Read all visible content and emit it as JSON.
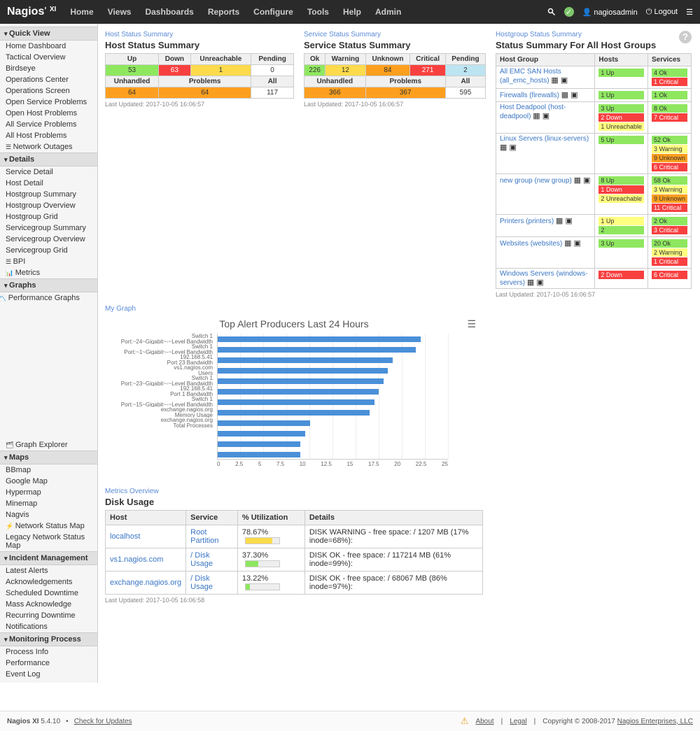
{
  "brand": "Nagios",
  "brand_suffix": "XI",
  "nav": [
    "Home",
    "Views",
    "Dashboards",
    "Reports",
    "Configure",
    "Tools",
    "Help",
    "Admin"
  ],
  "user": "nagiosadmin",
  "logout": "Logout",
  "sidebar": {
    "quickview": {
      "head": "Quick View",
      "items": [
        "Home Dashboard",
        "Tactical Overview",
        "Birdseye",
        "Operations Center",
        "Operations Screen",
        "Open Service Problems",
        "Open Host Problems",
        "All Service Problems",
        "All Host Problems"
      ],
      "extra": "Network Outages"
    },
    "details": {
      "head": "Details",
      "items": [
        "Service Detail",
        "Host Detail",
        "Hostgroup Summary",
        "Hostgroup Overview",
        "Hostgroup Grid",
        "Servicegroup Summary",
        "Servicegroup Overview",
        "Servicegroup Grid"
      ],
      "bpi": "BPI",
      "metrics": "Metrics"
    },
    "graphs": {
      "head": "Graphs",
      "perf": "Performance Graphs",
      "exp": "Graph Explorer"
    },
    "maps": {
      "head": "Maps",
      "items": [
        "BBmap",
        "Google Map",
        "Hypermap",
        "Minemap",
        "Nagvis"
      ],
      "netmap": "Network Status Map",
      "legacy": "Legacy Network Status Map"
    },
    "incident": {
      "head": "Incident Management",
      "items": [
        "Latest Alerts",
        "Acknowledgements",
        "Scheduled Downtime",
        "Mass Acknowledge",
        "Recurring Downtime",
        "Notifications"
      ]
    },
    "monitor": {
      "head": "Monitoring Process",
      "items": [
        "Process Info",
        "Performance",
        "Event Log"
      ]
    }
  },
  "host_summary": {
    "bc": "Host Status Summary",
    "title": "Host Status Summary",
    "h1": [
      "Up",
      "Down",
      "Unreachable",
      "Pending"
    ],
    "r1": {
      "up": "53",
      "down": "63",
      "unreach": "1",
      "pending": "0"
    },
    "h2": [
      "Unhandled",
      "Problems",
      "All"
    ],
    "r2": {
      "unh": "64",
      "prob": "64",
      "all": "117"
    },
    "ts": "Last Updated: 2017-10-05 16:06:57"
  },
  "svc_summary": {
    "bc": "Service Status Summary",
    "title": "Service Status Summary",
    "h1": [
      "Ok",
      "Warning",
      "Unknown",
      "Critical",
      "Pending"
    ],
    "r1": {
      "ok": "226",
      "warn": "12",
      "unk": "84",
      "crit": "271",
      "pending": "2"
    },
    "h2": [
      "Unhandled",
      "Problems",
      "All"
    ],
    "r2": {
      "unh": "366",
      "prob": "367",
      "all": "595"
    },
    "ts": "Last Updated: 2017-10-05 16:06:57"
  },
  "hostgroups": {
    "bc": "Hostgroup Status Summary",
    "title": "Status Summary For All Host Groups",
    "cols": [
      "Host Group",
      "Hosts",
      "Services"
    ],
    "rows": [
      {
        "name": "All EMC SAN Hosts (all_emc_hosts)",
        "hosts": [
          {
            "t": "1 Up",
            "c": "c-ok"
          }
        ],
        "svcs": [
          {
            "t": "4 Ok",
            "c": "c-ok"
          },
          {
            "t": "1 Critical",
            "c": "c-red"
          }
        ]
      },
      {
        "name": "Firewalls (firewalls)",
        "hosts": [
          {
            "t": "1 Up",
            "c": "c-ok"
          }
        ],
        "svcs": [
          {
            "t": "1 Ok",
            "c": "c-ok"
          }
        ]
      },
      {
        "name": "Host Deadpool (host-deadpool)",
        "hosts": [
          {
            "t": "3 Up",
            "c": "c-ok"
          },
          {
            "t": "2 Down",
            "c": "c-red"
          },
          {
            "t": "1 Unreachable",
            "c": "c-yellow"
          }
        ],
        "svcs": [
          {
            "t": "8 Ok",
            "c": "c-ok"
          },
          {
            "t": "7 Critical",
            "c": "c-red"
          }
        ]
      },
      {
        "name": "Linux Servers (linux-servers)",
        "hosts": [
          {
            "t": "5 Up",
            "c": "c-ok"
          }
        ],
        "svcs": [
          {
            "t": "52 Ok",
            "c": "c-ok"
          },
          {
            "t": "3 Warning",
            "c": "c-yellow"
          },
          {
            "t": "9 Unknown",
            "c": "c-orange"
          },
          {
            "t": "6 Critical",
            "c": "c-red"
          }
        ]
      },
      {
        "name": "new group (new group)",
        "hosts": [
          {
            "t": "8 Up",
            "c": "c-ok"
          },
          {
            "t": "1 Down",
            "c": "c-red"
          },
          {
            "t": "2 Unreachable",
            "c": "c-yellow"
          }
        ],
        "svcs": [
          {
            "t": "58 Ok",
            "c": "c-ok"
          },
          {
            "t": "3 Warning",
            "c": "c-yellow"
          },
          {
            "t": "9 Unknown",
            "c": "c-orange"
          },
          {
            "t": "11 Critical",
            "c": "c-red"
          }
        ]
      },
      {
        "name": "Printers (printers)",
        "hosts": [
          {
            "t": "1 Up",
            "c": "c-yellow"
          },
          {
            "t": "2",
            "c": "c-ok"
          }
        ],
        "svcs": [
          {
            "t": "2 Ok",
            "c": "c-ok"
          },
          {
            "t": "3 Critical",
            "c": "c-red"
          }
        ]
      },
      {
        "name": "Websites (websites)",
        "hosts": [
          {
            "t": "3 Up",
            "c": "c-ok"
          }
        ],
        "svcs": [
          {
            "t": "20 Ok",
            "c": "c-ok"
          },
          {
            "t": "2 Warning",
            "c": "c-yellow"
          },
          {
            "t": "1 Critical",
            "c": "c-red"
          }
        ]
      },
      {
        "name": "Windows Servers (windows-servers)",
        "hosts": [
          {
            "t": "2 Down",
            "c": "c-red"
          }
        ],
        "svcs": [
          {
            "t": "6 Critical",
            "c": "c-red"
          }
        ]
      }
    ],
    "ts": "Last Updated: 2017-10-05 16:06:57"
  },
  "graph": {
    "bc": "My Graph",
    "title": "Top Alert Producers Last 24 Hours",
    "labels": [
      "Switch 1",
      "Port:~24~Gigabit~-~Level Bandwidth",
      "Switch 1",
      "Port:~1~Gigabit~-~Level Bandwidth",
      "192.168.5.41",
      "Port 23 Bandwidth",
      "vs1.nagios.com",
      "Users",
      "Switch 1",
      "Port:~23~Gigabit~-~Level Bandwidth",
      "192.168.5.41",
      "Port 1 Bandwidth",
      "Switch 1",
      "Port:~15~Gigabit~-~Level Bandwidth",
      "exchange.nagios.org",
      "Memory Usage",
      "exchange.nagios.org",
      "Total Processes"
    ],
    "values": [
      22,
      21.5,
      19,
      18.5,
      18,
      17.5,
      17,
      16.5,
      10,
      9.5,
      9,
      9
    ],
    "xmax": 25,
    "xticks": [
      "0",
      "2.5",
      "5",
      "7.5",
      "10",
      "12.5",
      "15",
      "17.5",
      "20",
      "22.5",
      "25"
    ],
    "bar_color": "#4a90d9"
  },
  "metrics": {
    "bc": "Metrics Overview",
    "title": "Disk Usage",
    "cols": [
      "Host",
      "Service",
      "% Utilization",
      "Details"
    ],
    "rows": [
      {
        "host": "localhost",
        "svc": "Root Partition",
        "pct": "78.67%",
        "pctv": 78.67,
        "details": "DISK WARNING - free space: / 1207 MB (17% inode=68%):",
        "warn": true
      },
      {
        "host": "vs1.nagios.com",
        "svc": "/ Disk Usage",
        "pct": "37.30%",
        "pctv": 37.3,
        "details": "DISK OK - free space: / 117214 MB (61% inode=99%):"
      },
      {
        "host": "exchange.nagios.org",
        "svc": "/ Disk Usage",
        "pct": "13.22%",
        "pctv": 13.22,
        "details": "DISK OK - free space: / 68067 MB (86% inode=97%):"
      }
    ],
    "ts": "Last Updated: 2017-10-05 16:06:58"
  },
  "footer": {
    "product": "Nagios XI",
    "ver": "5.4.10",
    "check": "Check for Updates",
    "about": "About",
    "legal": "Legal",
    "copy": "Copyright © 2008-2017",
    "company": "Nagios Enterprises, LLC"
  }
}
